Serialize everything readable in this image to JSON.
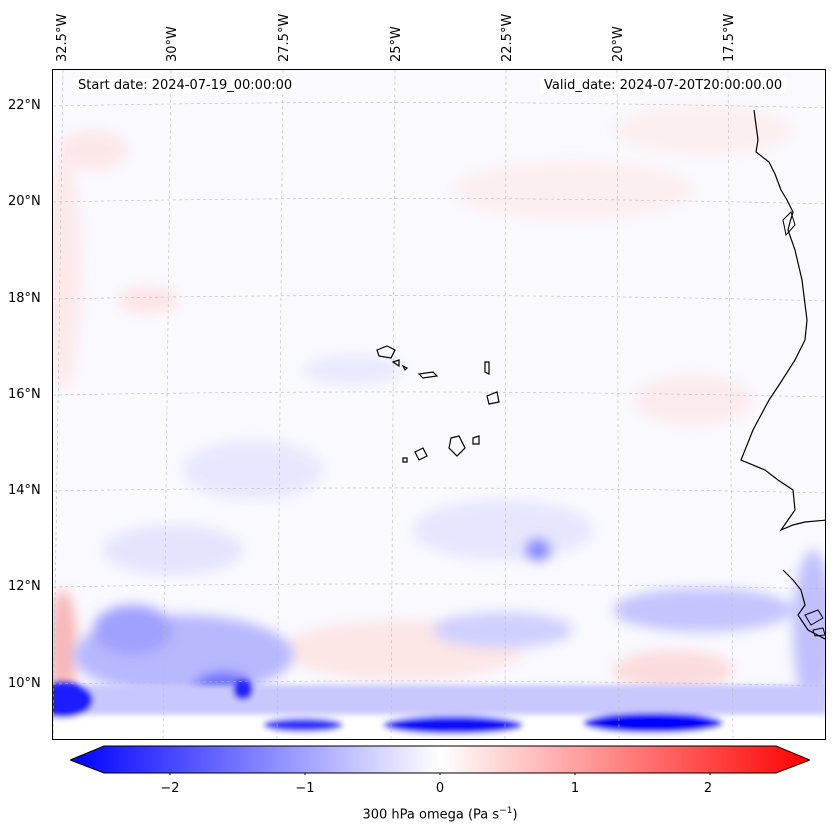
{
  "header": {
    "start_date": "Start date: 2024-07-19_00:00:00",
    "valid_date": "Valid_date: 2024-07-20T20:00:00.00"
  },
  "map": {
    "longitude_labels": [
      "32.5°W",
      "30°W",
      "27.5°W",
      "25°W",
      "22.5°W",
      "20°W",
      "17.5°W"
    ],
    "latitude_labels": [
      "22°N",
      "20°N",
      "18°N",
      "16°N",
      "14°N",
      "12°N",
      "10°N"
    ]
  },
  "colorbar": {
    "tick_labels": [
      "−2",
      "−1",
      "0",
      "1",
      "2"
    ],
    "range": [
      -2.6,
      2.6
    ],
    "label_prefix": "300 hPa omega (Pa s",
    "label_exp": "−1",
    "label_suffix": ")",
    "colors": {
      "low": "#0000ff",
      "mid": "#ffffff",
      "high": "#ff0000"
    }
  }
}
